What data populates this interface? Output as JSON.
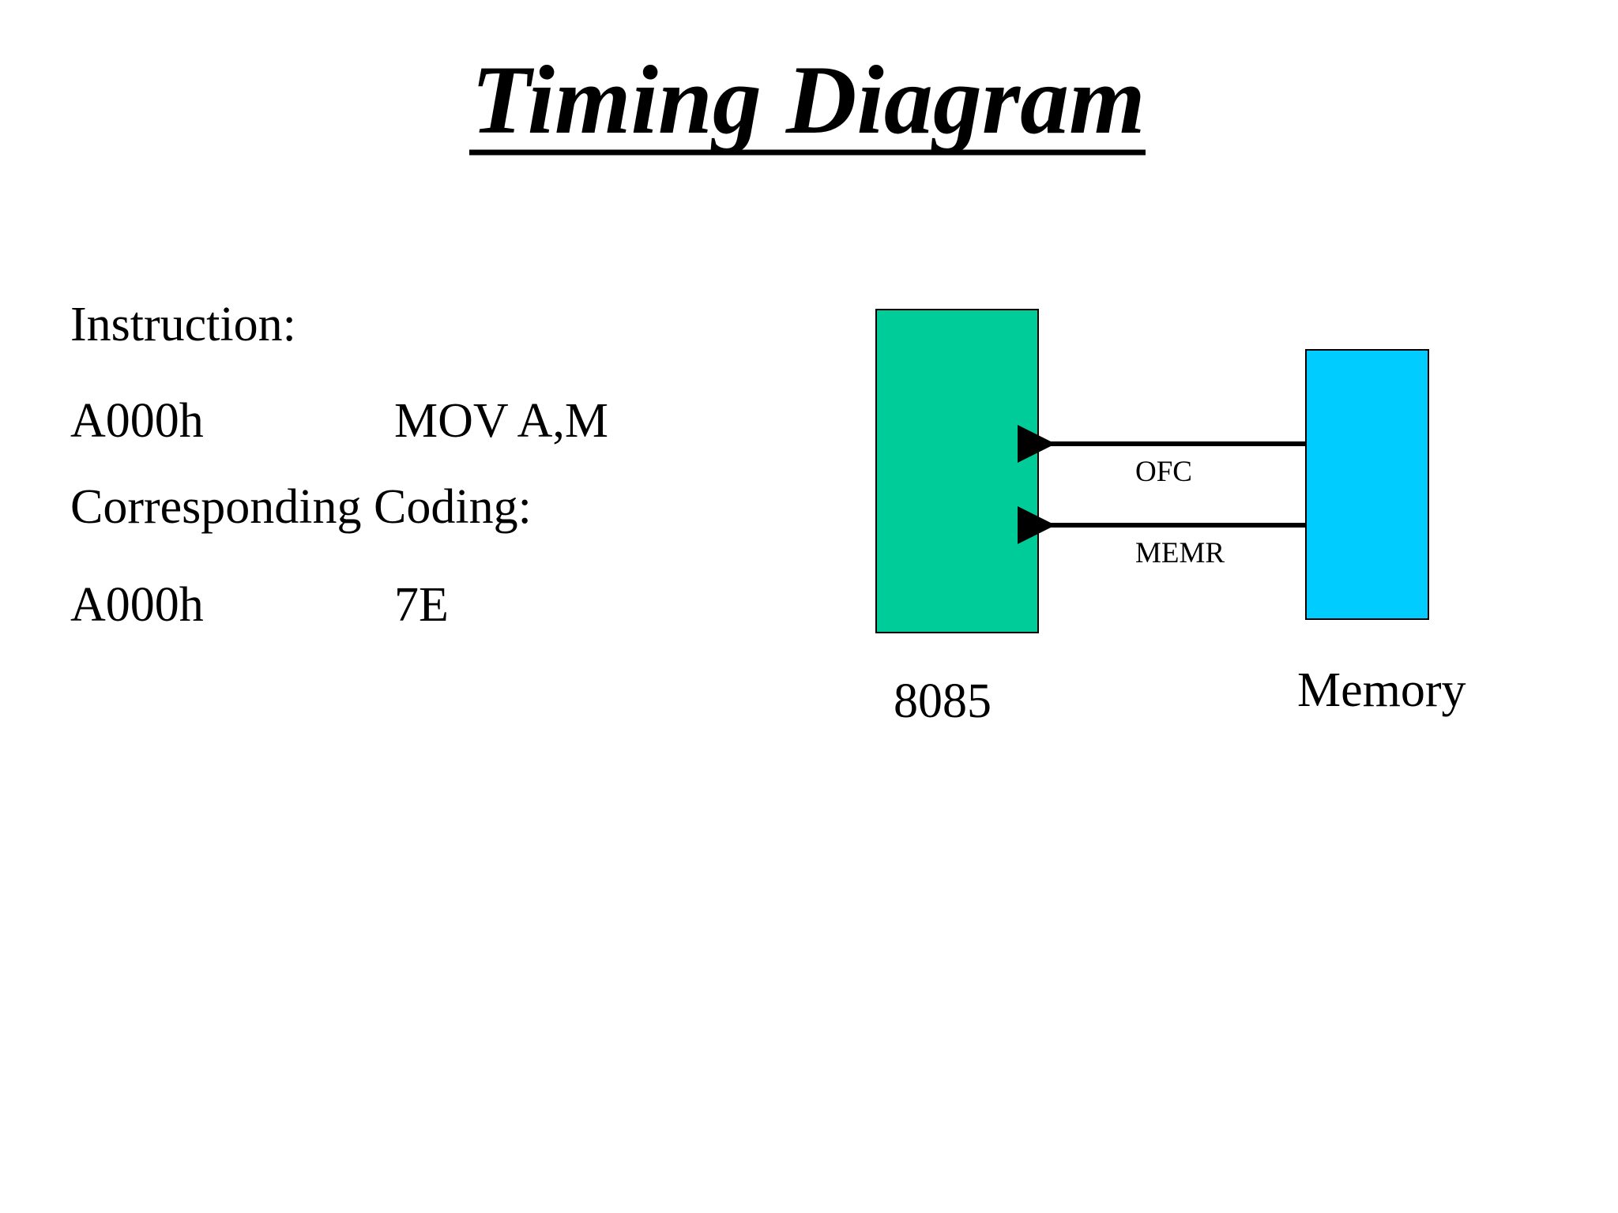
{
  "header": {
    "title": "Timing Diagram"
  },
  "instruction": {
    "label": "Instruction:",
    "address": "A000h",
    "mnemonic": "MOV A,M"
  },
  "coding": {
    "label": "Corresponding Coding:",
    "address": "A000h",
    "value": "7E"
  },
  "diagram": {
    "processor": "8085",
    "memory": "Memory",
    "signals": [
      "OFC",
      "MEMR"
    ]
  }
}
